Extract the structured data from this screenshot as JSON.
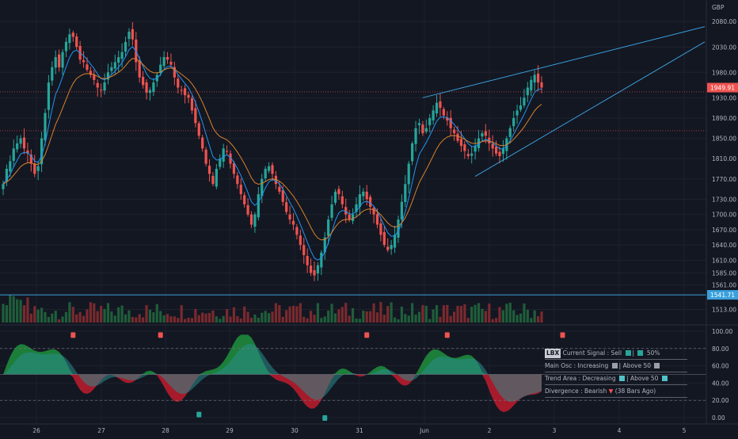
{
  "currency": "GBP",
  "price_axis": {
    "ticks": [
      "2080.00",
      "2030.00",
      "1980.00",
      "1930.00",
      "1890.00",
      "1850.00",
      "1810.00",
      "1770.00",
      "1730.00",
      "1700.00",
      "1670.00",
      "1640.00",
      "1610.00",
      "1585.00",
      "1561.00",
      "1513.00"
    ],
    "last_price_label": "1949.91",
    "line_level_label": "1541.71"
  },
  "osc_axis": {
    "ticks": [
      "100.00",
      "80.00",
      "60.00",
      "40.00",
      "20.00",
      "0.00"
    ]
  },
  "time_axis": {
    "labels": [
      "26",
      "27",
      "28",
      "29",
      "30",
      "31",
      "Jun",
      "2",
      "3",
      "4",
      "5"
    ]
  },
  "status_panel": {
    "row1_tag": "LBX",
    "row1_text": "Current Signal : Sell",
    "row1_value": "50%",
    "row2_text": "Main Osc  : Increasing",
    "row2_value": "Above 50",
    "row3_text": "Trend Area : Decreasing",
    "row3_value": "Above 50",
    "row4_text": "Divergence : Bearish",
    "row4_value": "(38 Bars Ago)"
  },
  "colors": {
    "background": "#131722",
    "bull": "#26a69a",
    "bear": "#ef5350",
    "osc_green": "#1e8a3b",
    "osc_red": "#b71c2c",
    "osc_teal": "#2a8c8c",
    "osc_purple": "#6a4c93",
    "axis_text": "#b2b5be",
    "trendline": "#3aa0dd"
  },
  "chart_data": {
    "type": "candlestick",
    "price_ylim": [
      1495,
      2110
    ],
    "oscillator_ylim": [
      0,
      100
    ],
    "closes": [
      1760,
      1790,
      1805,
      1830,
      1840,
      1850,
      1830,
      1820,
      1800,
      1780,
      1795,
      1850,
      1900,
      1960,
      1990,
      2010,
      1990,
      2020,
      2040,
      2055,
      2050,
      2030,
      2005,
      2000,
      1985,
      1975,
      1965,
      1950,
      1945,
      1960,
      1980,
      1990,
      2000,
      2010,
      2020,
      2040,
      2060,
      2045,
      2000,
      1970,
      1955,
      1940,
      1945,
      1960,
      1975,
      1995,
      2010,
      2005,
      1995,
      1970,
      1950,
      1945,
      1935,
      1930,
      1905,
      1880,
      1855,
      1830,
      1800,
      1780,
      1760,
      1790,
      1810,
      1830,
      1825,
      1800,
      1780,
      1760,
      1740,
      1720,
      1700,
      1680,
      1700,
      1740,
      1770,
      1790,
      1795,
      1780,
      1760,
      1745,
      1725,
      1705,
      1690,
      1680,
      1660,
      1640,
      1620,
      1600,
      1585,
      1580,
      1600,
      1625,
      1655,
      1690,
      1720,
      1745,
      1740,
      1720,
      1700,
      1690,
      1700,
      1720,
      1740,
      1745,
      1730,
      1715,
      1700,
      1680,
      1660,
      1640,
      1630,
      1640,
      1660,
      1690,
      1725,
      1760,
      1800,
      1840,
      1870,
      1880,
      1860,
      1870,
      1890,
      1905,
      1920,
      1910,
      1895,
      1885,
      1870,
      1860,
      1845,
      1835,
      1825,
      1815,
      1820,
      1835,
      1850,
      1860,
      1855,
      1840,
      1830,
      1820,
      1815,
      1830,
      1850,
      1870,
      1890,
      1905,
      1915,
      1930,
      1950,
      1965,
      1975,
      1960,
      1950
    ],
    "date_labels": [
      "26",
      "27",
      "28",
      "29",
      "30",
      "31",
      "Jun",
      "2",
      "3",
      "4",
      "5"
    ],
    "oscillator_series": [
      "Main Osc",
      "Trend Area"
    ],
    "levels": [
      1941.5,
      1865.0,
      1541.71
    ]
  }
}
